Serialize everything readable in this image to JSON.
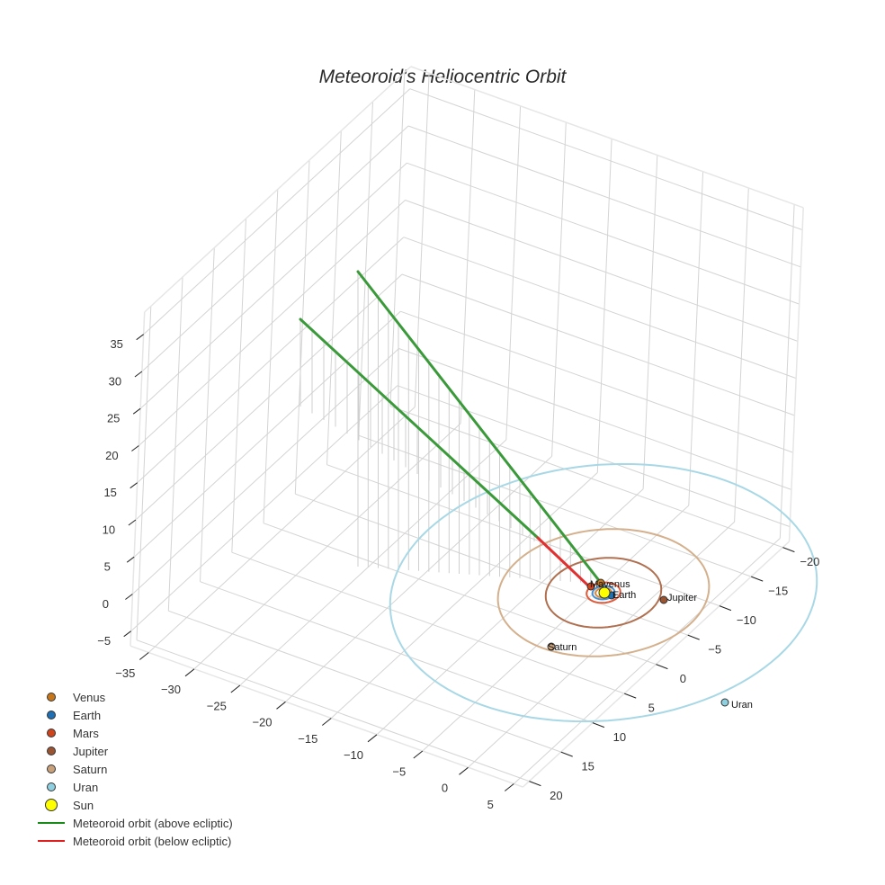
{
  "title": "Meteoroid's Heliocentric Orbit",
  "chart_data": {
    "type": "scatter3d",
    "title": "Meteoroid's Heliocentric Orbit",
    "axes": {
      "x": {
        "label": "",
        "ticks": [
          -35,
          -30,
          -25,
          -20,
          -15,
          -10,
          -5,
          0,
          5
        ],
        "range": [
          -37,
          6
        ]
      },
      "y": {
        "label": "",
        "ticks": [
          -20,
          -15,
          -10,
          -5,
          0,
          5,
          10,
          15,
          20
        ],
        "range": [
          -21,
          21
        ]
      },
      "z": {
        "label": "",
        "ticks": [
          -5,
          0,
          5,
          10,
          15,
          20,
          25,
          30,
          35
        ],
        "range": [
          -7,
          38
        ]
      }
    },
    "grid": true,
    "legend_position": "bottom-left",
    "series": [
      {
        "name": "Venus",
        "kind": "marker",
        "color": "#c8761a",
        "orbit_radius_au": 0.72
      },
      {
        "name": "Earth",
        "kind": "marker",
        "color": "#1f6fb4",
        "orbit_radius_au": 1.0
      },
      {
        "name": "Mars",
        "kind": "marker",
        "color": "#d0441c",
        "orbit_radius_au": 1.52
      },
      {
        "name": "Jupiter",
        "kind": "marker",
        "color": "#9a5432",
        "orbit_radius_au": 5.2
      },
      {
        "name": "Saturn",
        "kind": "marker",
        "color": "#c8a07a",
        "orbit_radius_au": 9.5
      },
      {
        "name": "Uran",
        "kind": "marker",
        "color": "#8ecfe0",
        "orbit_radius_au": 19.2
      },
      {
        "name": "Sun",
        "kind": "marker",
        "color": "#ffff00",
        "position": [
          0,
          0,
          0
        ]
      },
      {
        "name": "Meteoroid orbit (above ecliptic)",
        "kind": "line",
        "color": "#2e8b2e",
        "description": "Elongated orbit rising from near the Sun to aphelion around z≈35 near x≈-37"
      },
      {
        "name": "Meteoroid orbit (below ecliptic)",
        "kind": "line",
        "color": "#e02020",
        "description": "Short segment near perihelion just below ecliptic plane"
      }
    ],
    "planet_labels": [
      "Venus",
      "Earth",
      "Mars",
      "Jupiter",
      "Saturn",
      "Uran"
    ]
  },
  "legend": {
    "items": [
      {
        "label": "Venus",
        "color": "#c8761a",
        "type": "dot"
      },
      {
        "label": "Earth",
        "color": "#1f6fb4",
        "type": "dot"
      },
      {
        "label": "Mars",
        "color": "#d0441c",
        "type": "dot"
      },
      {
        "label": "Jupiter",
        "color": "#9a5432",
        "type": "dot"
      },
      {
        "label": "Saturn",
        "color": "#c8a07a",
        "type": "dot"
      },
      {
        "label": "Uran",
        "color": "#8ecfe0",
        "type": "dot"
      },
      {
        "label": "Sun",
        "color": "#ffff00",
        "type": "bigdot"
      },
      {
        "label": "Meteoroid orbit (above ecliptic)",
        "color": "#1a8a1a",
        "type": "line"
      },
      {
        "label": "Meteoroid orbit (below ecliptic)",
        "color": "#e02020",
        "type": "line"
      }
    ]
  },
  "axis_labels": {
    "z": [
      "35",
      "30",
      "25",
      "20",
      "15",
      "10",
      "5",
      "0",
      "−5"
    ],
    "x": [
      "−35",
      "−30",
      "−25",
      "−20",
      "−15",
      "−10",
      "−5",
      "0",
      "5"
    ],
    "y": [
      "20",
      "15",
      "10",
      "5",
      "0",
      "−5",
      "−10",
      "−15",
      "−20"
    ]
  },
  "planet_text": {
    "mars_venus": "Mavenus",
    "earth": "Earth",
    "jupiter": "Jupiter",
    "saturn": "Saturn",
    "uran": "Uran"
  }
}
